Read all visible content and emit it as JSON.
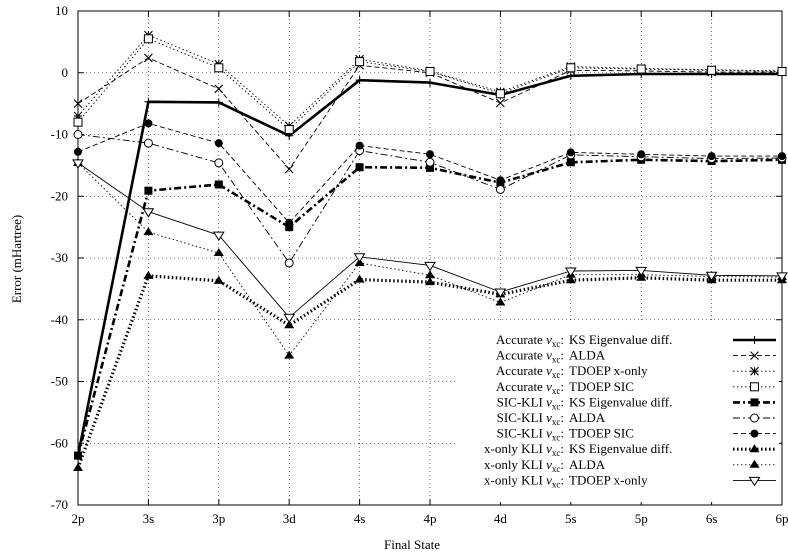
{
  "chart_data": {
    "type": "line",
    "xlabel": "Final State",
    "ylabel": "Error (mHartree)",
    "categories": [
      "2p",
      "3s",
      "3p",
      "3d",
      "4s",
      "4p",
      "4d",
      "5s",
      "5p",
      "6s",
      "6p"
    ],
    "ylim": [
      -70,
      10
    ],
    "yticks": [
      10,
      0,
      -10,
      -20,
      -30,
      -40,
      -50,
      -60,
      -70
    ],
    "grid": true,
    "legend_position": "bottom-right",
    "series": [
      {
        "prefix": "Accurate",
        "method": "KS Eigenvalue diff.",
        "style": "solid",
        "width": 2.6,
        "marker": "plus",
        "values": [
          -62.0,
          -4.7,
          -4.8,
          -10.2,
          -1.2,
          -1.6,
          -3.6,
          -0.5,
          -0.2,
          -0.2,
          -0.2
        ]
      },
      {
        "prefix": "Accurate",
        "method": "ALDA",
        "style": "dashed",
        "width": 0.9,
        "marker": "x",
        "values": [
          -5.0,
          2.4,
          -2.6,
          -15.6,
          1.2,
          0.0,
          -4.9,
          0.4,
          0.3,
          0.1,
          0.1
        ]
      },
      {
        "prefix": "Accurate",
        "method": "TDOEP x-only",
        "style": "dotted",
        "width": 0.9,
        "marker": "star",
        "values": [
          -7.0,
          6.1,
          1.4,
          -8.6,
          2.2,
          0.3,
          -3.1,
          1.0,
          0.7,
          0.5,
          0.3
        ]
      },
      {
        "prefix": "Accurate",
        "method": "TDOEP SIC",
        "style": "dotted",
        "width": 0.9,
        "marker": "square",
        "values": [
          -8.0,
          5.5,
          0.8,
          -9.2,
          1.8,
          0.2,
          -3.4,
          0.8,
          0.6,
          0.4,
          0.2
        ]
      },
      {
        "prefix": "SIC-KLI",
        "method": "KS Eigenvalue diff.",
        "style": "dashdot",
        "width": 2.6,
        "marker": "fsquare",
        "values": [
          -62.0,
          -19.1,
          -18.1,
          -25.0,
          -15.3,
          -15.4,
          -17.8,
          -14.5,
          -14.1,
          -14.3,
          -14.1
        ]
      },
      {
        "prefix": "SIC-KLI",
        "method": "ALDA",
        "style": "dashdot",
        "width": 0.9,
        "marker": "circle",
        "values": [
          -10.0,
          -11.4,
          -14.6,
          -30.8,
          -12.6,
          -14.5,
          -18.9,
          -13.3,
          -13.6,
          -13.9,
          -13.8
        ]
      },
      {
        "prefix": "SIC-KLI",
        "method": "TDOEP SIC",
        "style": "dashed",
        "width": 0.9,
        "marker": "fcircle",
        "values": [
          -12.8,
          -8.2,
          -11.4,
          -24.3,
          -11.8,
          -13.2,
          -17.4,
          -12.9,
          -13.2,
          -13.5,
          -13.5
        ]
      },
      {
        "prefix": "x-only KLI",
        "method": "KS Eigenvalue diff.",
        "style": "dotted",
        "width": 3.2,
        "marker": "ftriangle",
        "values": [
          -64.0,
          -32.9,
          -33.7,
          -40.9,
          -33.5,
          -33.9,
          -35.9,
          -33.6,
          -33.2,
          -33.6,
          -33.6
        ]
      },
      {
        "prefix": "x-only KLI",
        "method": "ALDA",
        "style": "dotted",
        "width": 0.9,
        "marker": "ftriangle",
        "values": [
          -14.6,
          -25.8,
          -29.2,
          -45.8,
          -30.8,
          -32.8,
          -37.2,
          -32.7,
          -32.7,
          -33.0,
          -33.1
        ]
      },
      {
        "prefix": "x-only KLI",
        "method": "TDOEP x-only",
        "style": "solid",
        "width": 0.9,
        "marker": "triangle",
        "values": [
          -14.6,
          -22.5,
          -26.3,
          -39.6,
          -29.8,
          -31.2,
          -35.5,
          -32.1,
          -32.0,
          -32.8,
          -32.9
        ]
      }
    ]
  },
  "legend": {
    "vxc_label": "v",
    "vxc_sub": "xc",
    "vxc_colon": ":"
  }
}
